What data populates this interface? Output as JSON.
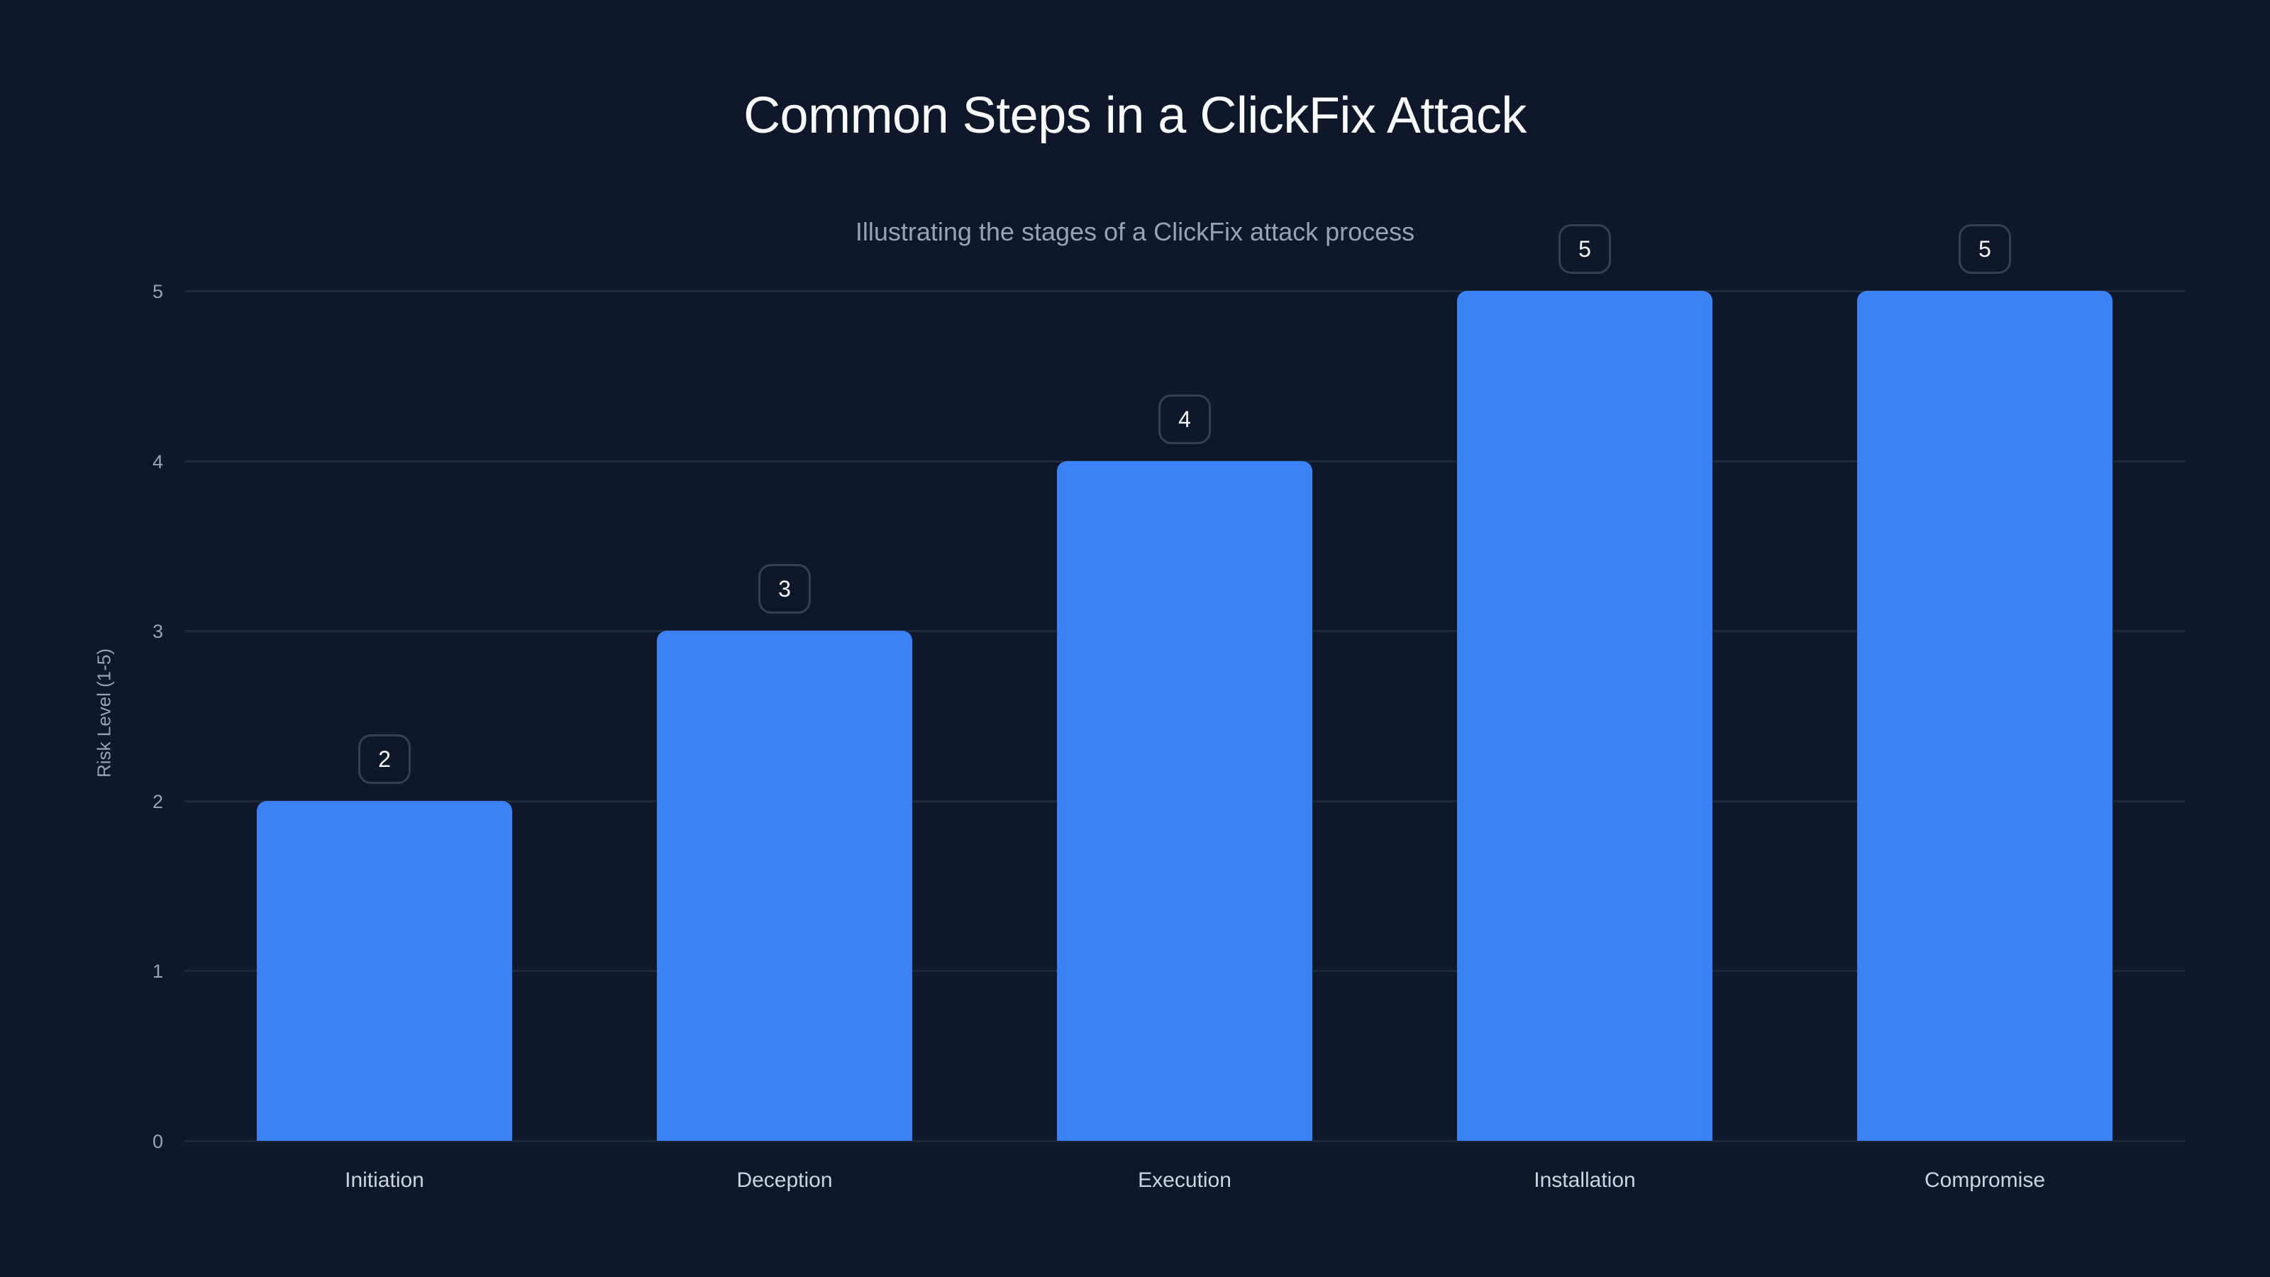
{
  "chart_data": {
    "type": "bar",
    "title": "Common Steps in a ClickFix Attack",
    "subtitle": "Illustrating the stages of a ClickFix attack process",
    "xlabel": "",
    "ylabel": "Risk Level (1-5)",
    "categories": [
      "Initiation",
      "Deception",
      "Execution",
      "Installation",
      "Compromise"
    ],
    "values": [
      2,
      3,
      4,
      5,
      5
    ],
    "ylim": [
      0,
      5
    ],
    "yticks": [
      0,
      1,
      2,
      3,
      4,
      5
    ],
    "grid": true,
    "legend": null,
    "data_labels": true,
    "colors": {
      "background": "#0f172a",
      "bar": "#3b82f6",
      "grid": "#1e293b",
      "title": "#f8fafc",
      "subtitle": "#94a3b8",
      "tick_label": "#94a3b8",
      "category_label": "#cbd5e1",
      "badge_border": "#334155"
    }
  }
}
